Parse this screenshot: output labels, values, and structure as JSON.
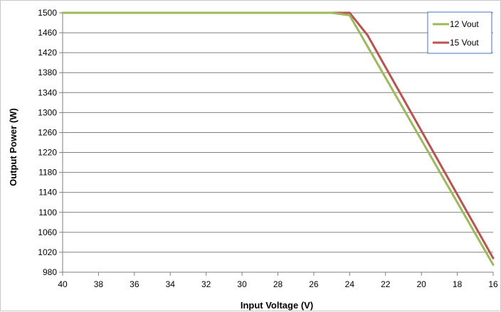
{
  "chart_data": {
    "type": "line",
    "title": "",
    "xlabel": "Input Voltage (V)",
    "ylabel": "Output Power (W)",
    "x_reversed": true,
    "xlim": [
      40,
      16
    ],
    "ylim": [
      980,
      1500
    ],
    "x_ticks": [
      40,
      38,
      36,
      34,
      32,
      30,
      28,
      26,
      24,
      22,
      20,
      18,
      16
    ],
    "y_ticks": [
      980,
      1020,
      1060,
      1100,
      1140,
      1180,
      1220,
      1260,
      1300,
      1340,
      1380,
      1420,
      1460,
      1500
    ],
    "grid": "horizontal",
    "legend_position": "top-right",
    "series": [
      {
        "name": "12 Vout",
        "color": "#9bbb59",
        "points": [
          [
            40,
            1500
          ],
          [
            25,
            1500
          ],
          [
            24,
            1495
          ],
          [
            16,
            995
          ]
        ]
      },
      {
        "name": "15 Vout",
        "color": "#c0504d",
        "points": [
          [
            40,
            1500
          ],
          [
            24,
            1500
          ],
          [
            23,
            1455
          ],
          [
            16,
            1008
          ]
        ]
      }
    ]
  }
}
